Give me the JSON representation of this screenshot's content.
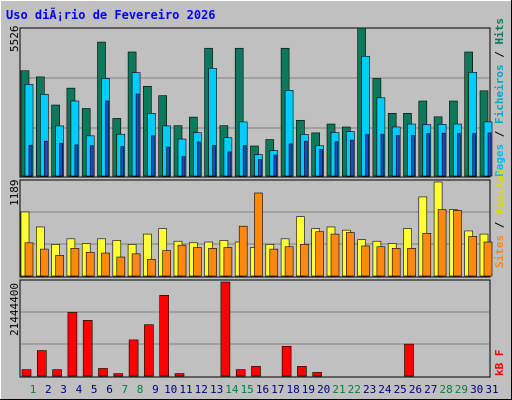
{
  "title": "Uso diÃ¡rio de Fevereiro 2026",
  "colors": {
    "background": "#c0c0c0",
    "frame": "#e0e0e0",
    "title": "#0000ff",
    "hits": "#0c7a5a",
    "files": "#00ccff",
    "pages": "#1a4cc8",
    "visits": "#ffff33",
    "sites": "#ff8811",
    "kbytes": "#ff0000",
    "weekend_day": "#008040",
    "weekday": "#000080",
    "separator": "#000000"
  },
  "legend": {
    "top": {
      "pages": "Pages",
      "sep1": "/",
      "files": "Ficheiros",
      "sep2": "/",
      "hits": "Hits"
    },
    "middle": {
      "sites": "Sites",
      "sep1": "/",
      "visits": "Visitas"
    },
    "bottom": {
      "kbytes": "kB F"
    }
  },
  "chart_data": [
    {
      "type": "bar",
      "panel": "hits-files-pages",
      "categories": [
        "1",
        "2",
        "3",
        "4",
        "5",
        "6",
        "7",
        "8",
        "9",
        "10",
        "11",
        "12",
        "13",
        "14",
        "15",
        "16",
        "17",
        "18",
        "19",
        "20",
        "21",
        "22",
        "23",
        "24",
        "25",
        "26",
        "27",
        "28",
        "29",
        "30",
        "31"
      ],
      "ytick_label": "5526",
      "ylim": [
        0,
        5526
      ],
      "series": [
        {
          "name": "Hits",
          "values": [
            3930,
            3700,
            2650,
            3280,
            2520,
            5000,
            2150,
            4630,
            3350,
            3000,
            1880,
            2200,
            4770,
            1880,
            4770,
            1120,
            1360,
            4770,
            2080,
            1610,
            1940,
            1830,
            5526,
            3640,
            2340,
            2340,
            2800,
            2210,
            2800,
            4630,
            3180
          ]
        },
        {
          "name": "Ficheiros",
          "values": [
            3420,
            3050,
            1870,
            2800,
            1500,
            3640,
            1560,
            3860,
            2340,
            1870,
            1380,
            1620,
            4020,
            1430,
            2020,
            800,
            950,
            3200,
            1550,
            1130,
            1620,
            1660,
            4470,
            2920,
            1830,
            1940,
            1920,
            1930,
            1940,
            3870,
            2020
          ]
        },
        {
          "name": "Pages",
          "values": [
            1150,
            1300,
            1220,
            1160,
            1130,
            2800,
            1100,
            3060,
            1500,
            1080,
            720,
            1270,
            1140,
            900,
            1140,
            620,
            780,
            1200,
            1300,
            990,
            1280,
            1340,
            1550,
            1560,
            1510,
            1510,
            1580,
            1600,
            1580,
            1580,
            1610
          ]
        }
      ]
    },
    {
      "type": "bar",
      "panel": "visits-sites",
      "categories": [
        "1",
        "2",
        "3",
        "4",
        "5",
        "6",
        "7",
        "8",
        "9",
        "10",
        "11",
        "12",
        "13",
        "14",
        "15",
        "16",
        "17",
        "18",
        "19",
        "20",
        "21",
        "22",
        "23",
        "24",
        "25",
        "26",
        "27",
        "28",
        "29",
        "30",
        "31"
      ],
      "ytick_label": "1189",
      "ylim": [
        0,
        1189
      ],
      "series": [
        {
          "name": "Visitas",
          "values": [
            810,
            620,
            400,
            470,
            410,
            470,
            450,
            400,
            530,
            600,
            440,
            420,
            430,
            450,
            430,
            360,
            400,
            470,
            750,
            600,
            620,
            580,
            460,
            440,
            410,
            600,
            1000,
            1189,
            840,
            570,
            530
          ]
        },
        {
          "name": "Sites",
          "values": [
            420,
            340,
            260,
            350,
            300,
            290,
            240,
            280,
            210,
            320,
            390,
            360,
            350,
            360,
            630,
            1050,
            340,
            370,
            400,
            560,
            530,
            550,
            380,
            370,
            350,
            350,
            540,
            840,
            830,
            500,
            430
          ]
        }
      ]
    },
    {
      "type": "bar",
      "panel": "kbytes",
      "categories": [
        "1",
        "2",
        "3",
        "4",
        "5",
        "6",
        "7",
        "8",
        "9",
        "10",
        "11",
        "12",
        "13",
        "14",
        "15",
        "16",
        "17",
        "18",
        "19",
        "20",
        "21",
        "22",
        "23",
        "24",
        "25",
        "26",
        "27",
        "28",
        "29",
        "30",
        "31"
      ],
      "ytick_label": "21444400",
      "ylim": [
        0,
        21444400
      ],
      "series": [
        {
          "name": "kB F",
          "values": [
            1450000,
            5800000,
            1450000,
            14500000,
            12700000,
            1720000,
            540000,
            8230000,
            11700000,
            18400000,
            550000,
            0,
            0,
            21444400,
            1450000,
            2190000,
            0,
            6780000,
            2190000,
            810000,
            0,
            0,
            0,
            0,
            0,
            7270000,
            0,
            0,
            0,
            0,
            0
          ]
        }
      ]
    }
  ],
  "days": [
    {
      "label": "1",
      "weekend": true
    },
    {
      "label": "2",
      "weekend": false
    },
    {
      "label": "3",
      "weekend": false
    },
    {
      "label": "4",
      "weekend": false
    },
    {
      "label": "5",
      "weekend": false
    },
    {
      "label": "6",
      "weekend": false
    },
    {
      "label": "7",
      "weekend": true
    },
    {
      "label": "8",
      "weekend": true
    },
    {
      "label": "9",
      "weekend": false
    },
    {
      "label": "10",
      "weekend": false
    },
    {
      "label": "11",
      "weekend": false
    },
    {
      "label": "12",
      "weekend": false
    },
    {
      "label": "13",
      "weekend": false
    },
    {
      "label": "14",
      "weekend": true
    },
    {
      "label": "15",
      "weekend": true
    },
    {
      "label": "16",
      "weekend": false
    },
    {
      "label": "17",
      "weekend": false
    },
    {
      "label": "18",
      "weekend": false
    },
    {
      "label": "19",
      "weekend": false
    },
    {
      "label": "20",
      "weekend": false
    },
    {
      "label": "21",
      "weekend": true
    },
    {
      "label": "22",
      "weekend": true
    },
    {
      "label": "23",
      "weekend": false
    },
    {
      "label": "24",
      "weekend": false
    },
    {
      "label": "25",
      "weekend": false
    },
    {
      "label": "26",
      "weekend": false
    },
    {
      "label": "27",
      "weekend": false
    },
    {
      "label": "28",
      "weekend": true
    },
    {
      "label": "29",
      "weekend": true
    },
    {
      "label": "30",
      "weekend": false
    },
    {
      "label": "31",
      "weekend": false
    }
  ]
}
